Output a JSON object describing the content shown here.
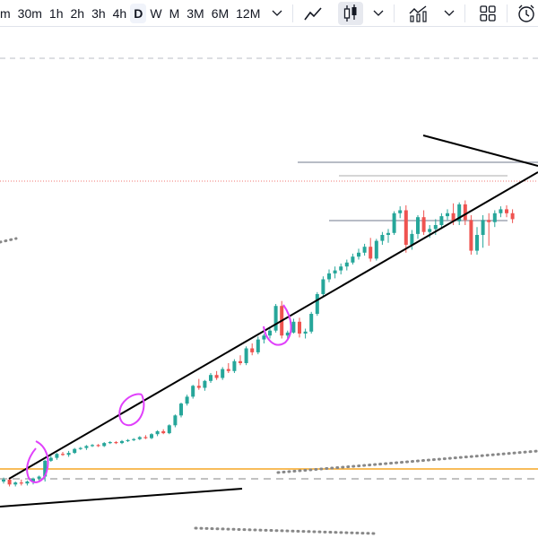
{
  "toolbar": {
    "timeframes": [
      {
        "label": "m",
        "active": false
      },
      {
        "label": "30m",
        "active": false
      },
      {
        "label": "1h",
        "active": false
      },
      {
        "label": "2h",
        "active": false
      },
      {
        "label": "3h",
        "active": false
      },
      {
        "label": "4h",
        "active": false
      },
      {
        "label": "D",
        "active": true
      },
      {
        "label": "W",
        "active": false
      },
      {
        "label": "M",
        "active": false
      },
      {
        "label": "3M",
        "active": false
      },
      {
        "label": "6M",
        "active": false
      },
      {
        "label": "12M",
        "active": false
      }
    ],
    "icons": [
      "chevron-down-icon",
      "line-chart-icon",
      "candlestick-icon",
      "chevron-down-icon",
      "indicators-icon",
      "chevron-down-icon",
      "layout-grid-icon",
      "alert-clock-icon"
    ]
  },
  "colors": {
    "up": "#26a69a",
    "down": "#ef5350",
    "trendline": "#000000",
    "support_line": "#f5a623",
    "highlight": "#e040fb",
    "price_line": "#ef5350",
    "dotted": "#9e9e9e"
  },
  "chart_data": {
    "type": "candlestick",
    "candles": [
      {
        "o": 60,
        "h": 64,
        "l": 58,
        "c": 62
      },
      {
        "o": 62,
        "h": 63,
        "l": 55,
        "c": 57
      },
      {
        "o": 57,
        "h": 60,
        "l": 55,
        "c": 59
      },
      {
        "o": 59,
        "h": 62,
        "l": 56,
        "c": 58
      },
      {
        "o": 58,
        "h": 61,
        "l": 56,
        "c": 60
      },
      {
        "o": 60,
        "h": 64,
        "l": 57,
        "c": 63
      },
      {
        "o": 63,
        "h": 66,
        "l": 61,
        "c": 65
      },
      {
        "o": 65,
        "h": 82,
        "l": 60,
        "c": 81
      },
      {
        "o": 81,
        "h": 86,
        "l": 80,
        "c": 84
      },
      {
        "o": 84,
        "h": 89,
        "l": 82,
        "c": 88
      },
      {
        "o": 88,
        "h": 90,
        "l": 86,
        "c": 87
      },
      {
        "o": 87,
        "h": 91,
        "l": 85,
        "c": 89
      },
      {
        "o": 89,
        "h": 94,
        "l": 88,
        "c": 93
      },
      {
        "o": 93,
        "h": 95,
        "l": 92,
        "c": 94
      },
      {
        "o": 94,
        "h": 97,
        "l": 92,
        "c": 96
      },
      {
        "o": 96,
        "h": 98,
        "l": 95,
        "c": 97
      },
      {
        "o": 97,
        "h": 98,
        "l": 95,
        "c": 96
      },
      {
        "o": 96,
        "h": 100,
        "l": 95,
        "c": 99
      },
      {
        "o": 99,
        "h": 101,
        "l": 98,
        "c": 100
      },
      {
        "o": 100,
        "h": 101,
        "l": 98,
        "c": 99
      },
      {
        "o": 99,
        "h": 102,
        "l": 98,
        "c": 101
      },
      {
        "o": 101,
        "h": 103,
        "l": 100,
        "c": 102
      },
      {
        "o": 102,
        "h": 104,
        "l": 101,
        "c": 103
      },
      {
        "o": 103,
        "h": 106,
        "l": 102,
        "c": 105
      },
      {
        "o": 105,
        "h": 107,
        "l": 103,
        "c": 104
      },
      {
        "o": 104,
        "h": 109,
        "l": 103,
        "c": 108
      },
      {
        "o": 108,
        "h": 112,
        "l": 106,
        "c": 111
      },
      {
        "o": 111,
        "h": 113,
        "l": 108,
        "c": 109
      },
      {
        "o": 109,
        "h": 118,
        "l": 108,
        "c": 117
      },
      {
        "o": 117,
        "h": 128,
        "l": 115,
        "c": 127
      },
      {
        "o": 127,
        "h": 140,
        "l": 125,
        "c": 139
      },
      {
        "o": 139,
        "h": 148,
        "l": 137,
        "c": 146
      },
      {
        "o": 146,
        "h": 158,
        "l": 144,
        "c": 157
      },
      {
        "o": 157,
        "h": 164,
        "l": 153,
        "c": 155
      },
      {
        "o": 155,
        "h": 163,
        "l": 152,
        "c": 162
      },
      {
        "o": 162,
        "h": 170,
        "l": 160,
        "c": 168
      },
      {
        "o": 168,
        "h": 172,
        "l": 163,
        "c": 165
      },
      {
        "o": 165,
        "h": 176,
        "l": 163,
        "c": 174
      },
      {
        "o": 174,
        "h": 180,
        "l": 170,
        "c": 172
      },
      {
        "o": 172,
        "h": 184,
        "l": 170,
        "c": 182
      },
      {
        "o": 182,
        "h": 188,
        "l": 178,
        "c": 180
      },
      {
        "o": 180,
        "h": 197,
        "l": 178,
        "c": 195
      },
      {
        "o": 195,
        "h": 200,
        "l": 188,
        "c": 191
      },
      {
        "o": 191,
        "h": 207,
        "l": 189,
        "c": 204
      },
      {
        "o": 204,
        "h": 210,
        "l": 200,
        "c": 208
      },
      {
        "o": 208,
        "h": 215,
        "l": 205,
        "c": 213
      },
      {
        "o": 213,
        "h": 240,
        "l": 211,
        "c": 238
      },
      {
        "o": 238,
        "h": 243,
        "l": 205,
        "c": 208
      },
      {
        "o": 208,
        "h": 213,
        "l": 203,
        "c": 211
      },
      {
        "o": 211,
        "h": 225,
        "l": 210,
        "c": 222
      },
      {
        "o": 222,
        "h": 226,
        "l": 206,
        "c": 210
      },
      {
        "o": 210,
        "h": 215,
        "l": 205,
        "c": 212
      },
      {
        "o": 212,
        "h": 232,
        "l": 210,
        "c": 230
      },
      {
        "o": 230,
        "h": 252,
        "l": 228,
        "c": 250
      },
      {
        "o": 250,
        "h": 268,
        "l": 248,
        "c": 265
      },
      {
        "o": 265,
        "h": 275,
        "l": 262,
        "c": 271
      },
      {
        "o": 271,
        "h": 278,
        "l": 266,
        "c": 274
      },
      {
        "o": 274,
        "h": 281,
        "l": 270,
        "c": 278
      },
      {
        "o": 278,
        "h": 285,
        "l": 274,
        "c": 282
      },
      {
        "o": 282,
        "h": 291,
        "l": 280,
        "c": 288
      },
      {
        "o": 288,
        "h": 296,
        "l": 285,
        "c": 292
      },
      {
        "o": 292,
        "h": 301,
        "l": 289,
        "c": 298
      },
      {
        "o": 298,
        "h": 307,
        "l": 283,
        "c": 286
      },
      {
        "o": 286,
        "h": 306,
        "l": 284,
        "c": 304
      },
      {
        "o": 304,
        "h": 313,
        "l": 300,
        "c": 310
      },
      {
        "o": 310,
        "h": 316,
        "l": 302,
        "c": 312
      },
      {
        "o": 312,
        "h": 334,
        "l": 310,
        "c": 332
      },
      {
        "o": 332,
        "h": 339,
        "l": 327,
        "c": 335
      },
      {
        "o": 335,
        "h": 340,
        "l": 292,
        "c": 300
      },
      {
        "o": 300,
        "h": 315,
        "l": 295,
        "c": 311
      },
      {
        "o": 311,
        "h": 330,
        "l": 306,
        "c": 328
      },
      {
        "o": 328,
        "h": 335,
        "l": 310,
        "c": 313
      },
      {
        "o": 313,
        "h": 320,
        "l": 307,
        "c": 316
      },
      {
        "o": 316,
        "h": 326,
        "l": 310,
        "c": 320
      },
      {
        "o": 320,
        "h": 332,
        "l": 316,
        "c": 329
      },
      {
        "o": 329,
        "h": 336,
        "l": 325,
        "c": 332
      },
      {
        "o": 332,
        "h": 342,
        "l": 320,
        "c": 324
      },
      {
        "o": 324,
        "h": 343,
        "l": 320,
        "c": 341
      },
      {
        "o": 341,
        "h": 345,
        "l": 320,
        "c": 325
      },
      {
        "o": 325,
        "h": 330,
        "l": 290,
        "c": 294
      },
      {
        "o": 294,
        "h": 318,
        "l": 290,
        "c": 310
      },
      {
        "o": 310,
        "h": 330,
        "l": 297,
        "c": 325
      },
      {
        "o": 325,
        "h": 332,
        "l": 299,
        "c": 323
      },
      {
        "o": 323,
        "h": 335,
        "l": 318,
        "c": 332
      },
      {
        "o": 332,
        "h": 339,
        "l": 328,
        "c": 336
      },
      {
        "o": 336,
        "h": 340,
        "l": 328,
        "c": 332
      },
      {
        "o": 332,
        "h": 336,
        "l": 322,
        "c": 326
      }
    ],
    "xlabel": "",
    "ylabel": ""
  }
}
